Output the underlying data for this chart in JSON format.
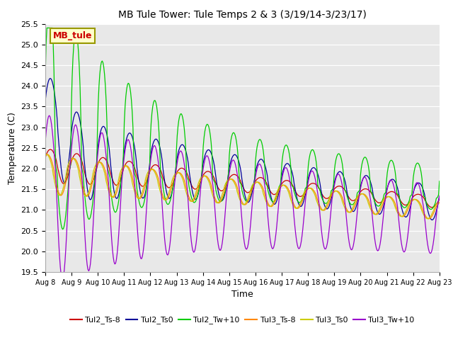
{
  "title": "MB Tule Tower: Tule Temps 2 & 3 (3/19/14-3/23/17)",
  "xlabel": "Time",
  "ylabel": "Temperature (C)",
  "ylim": [
    19.5,
    25.5
  ],
  "xlim": [
    0,
    15
  ],
  "plot_bg": "#e8e8e8",
  "series": [
    {
      "label": "Tul2_Ts-8",
      "color": "#cc0000"
    },
    {
      "label": "Tul2_Ts0",
      "color": "#000099"
    },
    {
      "label": "Tul2_Tw+10",
      "color": "#00cc00"
    },
    {
      "label": "Tul3_Ts-8",
      "color": "#ff8800"
    },
    {
      "label": "Tul3_Ts0",
      "color": "#cccc00"
    },
    {
      "label": "Tul3_Tw+10",
      "color": "#9900cc"
    }
  ],
  "xtick_labels": [
    "Aug 8",
    "Aug 9",
    "Aug 10",
    "Aug 11",
    "Aug 12",
    "Aug 13",
    "Aug 14",
    "Aug 15",
    "Aug 16",
    "Aug 17",
    "Aug 18",
    "Aug 19",
    "Aug 20",
    "Aug 21",
    "Aug 22",
    "Aug 23"
  ],
  "ytick_labels": [
    "19.5",
    "20.0",
    "20.5",
    "21.0",
    "21.5",
    "22.0",
    "22.5",
    "23.0",
    "23.5",
    "24.0",
    "24.5",
    "25.0",
    "25.5"
  ],
  "ytick_values": [
    19.5,
    20.0,
    20.5,
    21.0,
    21.5,
    22.0,
    22.5,
    23.0,
    23.5,
    24.0,
    24.5,
    25.0,
    25.5
  ],
  "station_label": "MB_tule",
  "station_label_color": "#cc0000",
  "station_box_facecolor": "#ffffcc",
  "station_box_edgecolor": "#999900",
  "figsize": [
    6.4,
    4.8
  ],
  "dpi": 100
}
